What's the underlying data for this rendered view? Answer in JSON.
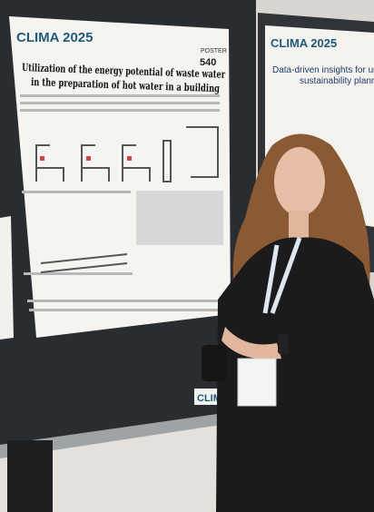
{
  "poster_left": {
    "logo": "CLIMA 2025",
    "poster_label": "POSTER",
    "poster_number": "540",
    "title_line1": "Utilization of the energy potential of waste water",
    "title_line2": "in the preparation of hot water in a building"
  },
  "poster_right": {
    "logo": "CLIMA 2025",
    "title_line1": "Data-driven insights for univer",
    "title_line2": "sustainability plann"
  },
  "bottom_logo": "CLIMA"
}
